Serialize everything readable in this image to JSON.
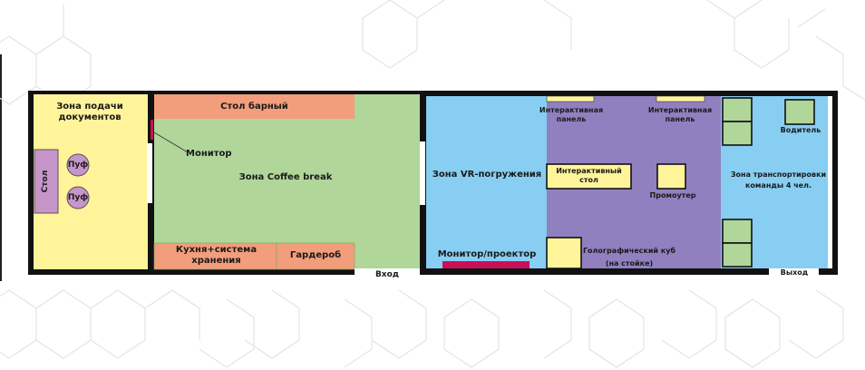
{
  "rooms": {
    "documents_zone": "Зона подачи\nдокументов",
    "desk": "Стол",
    "pouf_1": "Пуф",
    "pouf_2": "Пуф",
    "bar_table": "Стол барный",
    "monitor": "Монитор",
    "coffee_break": "Зона Coffee break",
    "kitchen": "Кухня+система\nхранения",
    "wardrobe": "Гардероб",
    "entrance": "Вход",
    "vr_zone": "Зона VR-погружения",
    "monitor_projector": "Монитор/проектор",
    "interactive_panel_1": "Интерактивная\nпанель",
    "interactive_panel_2": "Интерактивная\nпанель",
    "interactive_table": "Интерактивный\nстол",
    "promoter": "Промоутер",
    "holo_cube": "Голографический куб\n(на стойке)",
    "driver": "Водитель",
    "transport_zone": "Зона транспортировки\nкоманды 4 чел.",
    "exit": "Выход"
  },
  "colors": {
    "yellow": "#fff49a",
    "purple": "#c695c9",
    "salmon": "#f29d7c",
    "green": "#b0d69a",
    "blue": "#87cef2",
    "violet": "#9080c0",
    "magenta": "#c8105a",
    "wall": "#111111",
    "pattern": "#e6e6e6"
  }
}
